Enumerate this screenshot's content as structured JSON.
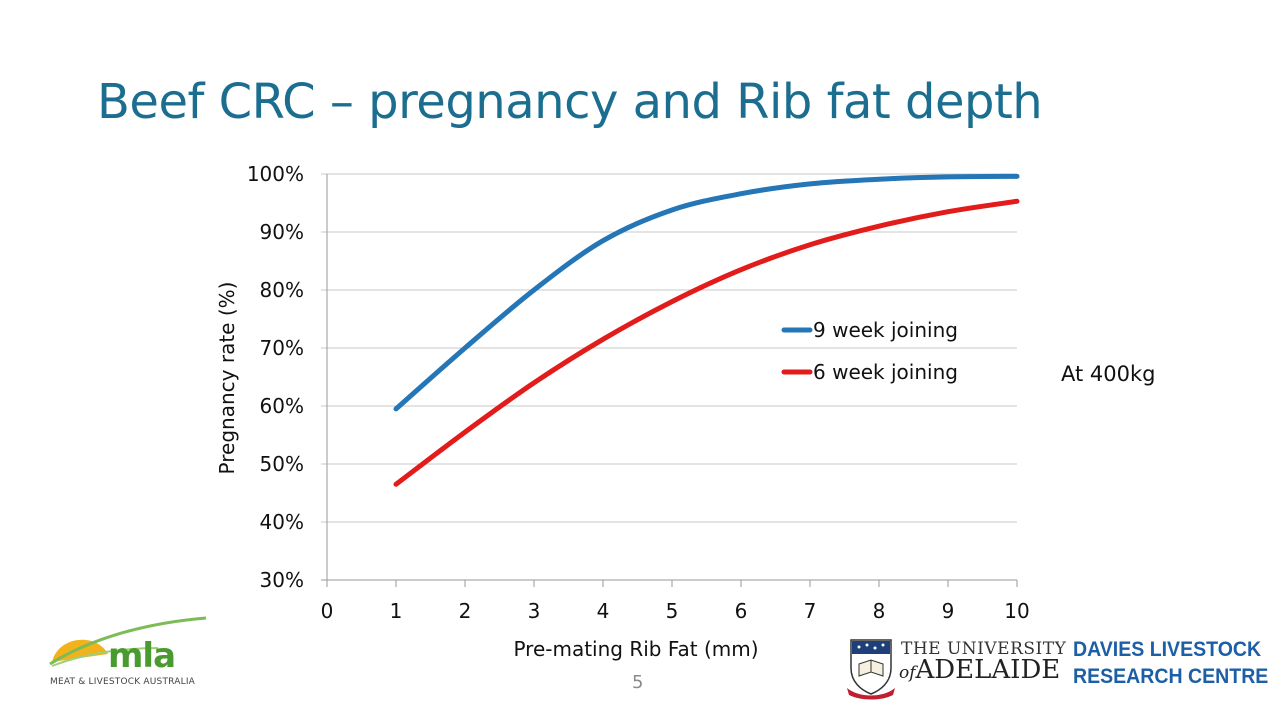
{
  "slide": {
    "title": "Beef CRC – pregnancy and Rib fat depth",
    "annotation": "At 400kg",
    "page_number": "5"
  },
  "logos": {
    "mla": {
      "word": "mla",
      "tagline": "MEAT & LIVESTOCK AUSTRALIA"
    },
    "university": {
      "line1": "THE UNIVERSITY",
      "line2_prefix": "of",
      "line2": "ADELAIDE"
    },
    "davies": {
      "line1": "DAVIES LIVESTOCK",
      "line2": "RESEARCH CENTRE"
    }
  },
  "chart_data": {
    "type": "line",
    "title": "",
    "xlabel": "Pre-mating Rib Fat (mm)",
    "ylabel": "Pregnancy rate (%)",
    "xlim": [
      0,
      10
    ],
    "ylim": [
      30,
      100
    ],
    "x_ticks": [
      "0",
      "1",
      "2",
      "3",
      "4",
      "5",
      "6",
      "7",
      "8",
      "9",
      "10"
    ],
    "y_ticks": [
      "30%",
      "40%",
      "50%",
      "60%",
      "70%",
      "80%",
      "90%",
      "100%"
    ],
    "grid": "horizontal",
    "legend_position": "center-right",
    "x": [
      1,
      2,
      3,
      4,
      5,
      6,
      7,
      8,
      9,
      10
    ],
    "series": [
      {
        "name": "9 week joining",
        "color": "#2576b6",
        "values": [
          59.5,
          70,
          80,
          88.5,
          93.8,
          96.6,
          98.3,
          99.1,
          99.5,
          99.6
        ]
      },
      {
        "name": "6 week joining",
        "color": "#e21b1b",
        "values": [
          46.5,
          55.5,
          64,
          71.5,
          78,
          83.5,
          87.8,
          91,
          93.5,
          95.3
        ]
      }
    ]
  }
}
